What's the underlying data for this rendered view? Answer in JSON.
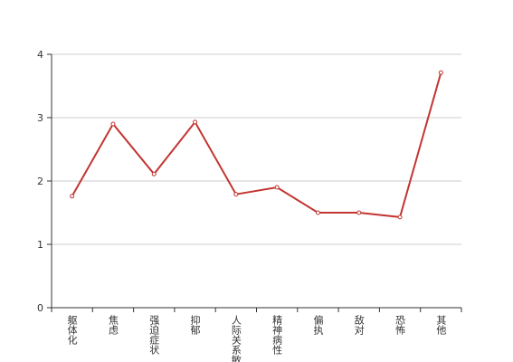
{
  "chart_data": {
    "type": "line",
    "categories": [
      "躯体化",
      "焦虑",
      "强迫症状",
      "抑郁",
      "人际关系敏感",
      "精神病性",
      "偏执",
      "敌对",
      "恐怖",
      "其他"
    ],
    "values": [
      1.76,
      2.9,
      2.11,
      2.93,
      1.79,
      1.9,
      1.5,
      1.5,
      1.43,
      3.71
    ],
    "color": "#c23531",
    "ylim": [
      0,
      4
    ],
    "yticks": [
      0,
      1,
      2,
      3,
      4
    ],
    "grid": true
  }
}
